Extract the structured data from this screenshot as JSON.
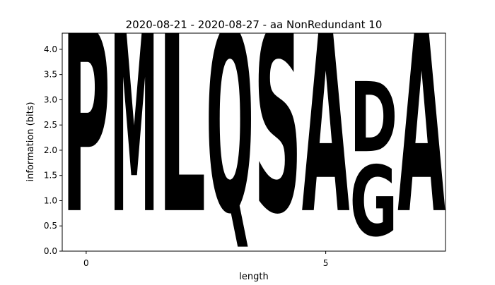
{
  "chart_data": {
    "type": "sequence-logo",
    "title": "2020-08-21 - 2020-08-27 - aa NonRedundant 10",
    "xlabel": "length",
    "ylabel": "information (bits)",
    "xlim": [
      -0.5,
      7.5
    ],
    "ylim": [
      0,
      4.32
    ],
    "xticks": [
      0,
      5
    ],
    "yticks": [
      0.0,
      0.5,
      1.0,
      1.5,
      2.0,
      2.5,
      3.0,
      3.5,
      4.0
    ],
    "grid": false,
    "positions": [
      {
        "x": 0,
        "letters": [
          {
            "char": "P",
            "bits": 4.32,
            "color": "#000000"
          }
        ]
      },
      {
        "x": 1,
        "letters": [
          {
            "char": "M",
            "bits": 4.32,
            "color": "#000000"
          }
        ]
      },
      {
        "x": 2,
        "letters": [
          {
            "char": "L",
            "bits": 4.32,
            "color": "#000000"
          }
        ]
      },
      {
        "x": 3,
        "letters": [
          {
            "char": "Q",
            "bits": 4.32,
            "color": "#d62bc0"
          }
        ]
      },
      {
        "x": 4,
        "letters": [
          {
            "char": "S",
            "bits": 4.32,
            "color": "#22d62e"
          }
        ]
      },
      {
        "x": 5,
        "letters": [
          {
            "char": "A",
            "bits": 4.32,
            "color": "#000000"
          }
        ]
      },
      {
        "x": 6,
        "letters": [
          {
            "char": "G",
            "bits": 1.67,
            "color": "#22d62e"
          },
          {
            "char": "D",
            "bits": 1.66,
            "color": "#d60b16"
          }
        ]
      },
      {
        "x": 7,
        "letters": [
          {
            "char": "A",
            "bits": 4.32,
            "color": "#000000"
          }
        ]
      }
    ]
  }
}
